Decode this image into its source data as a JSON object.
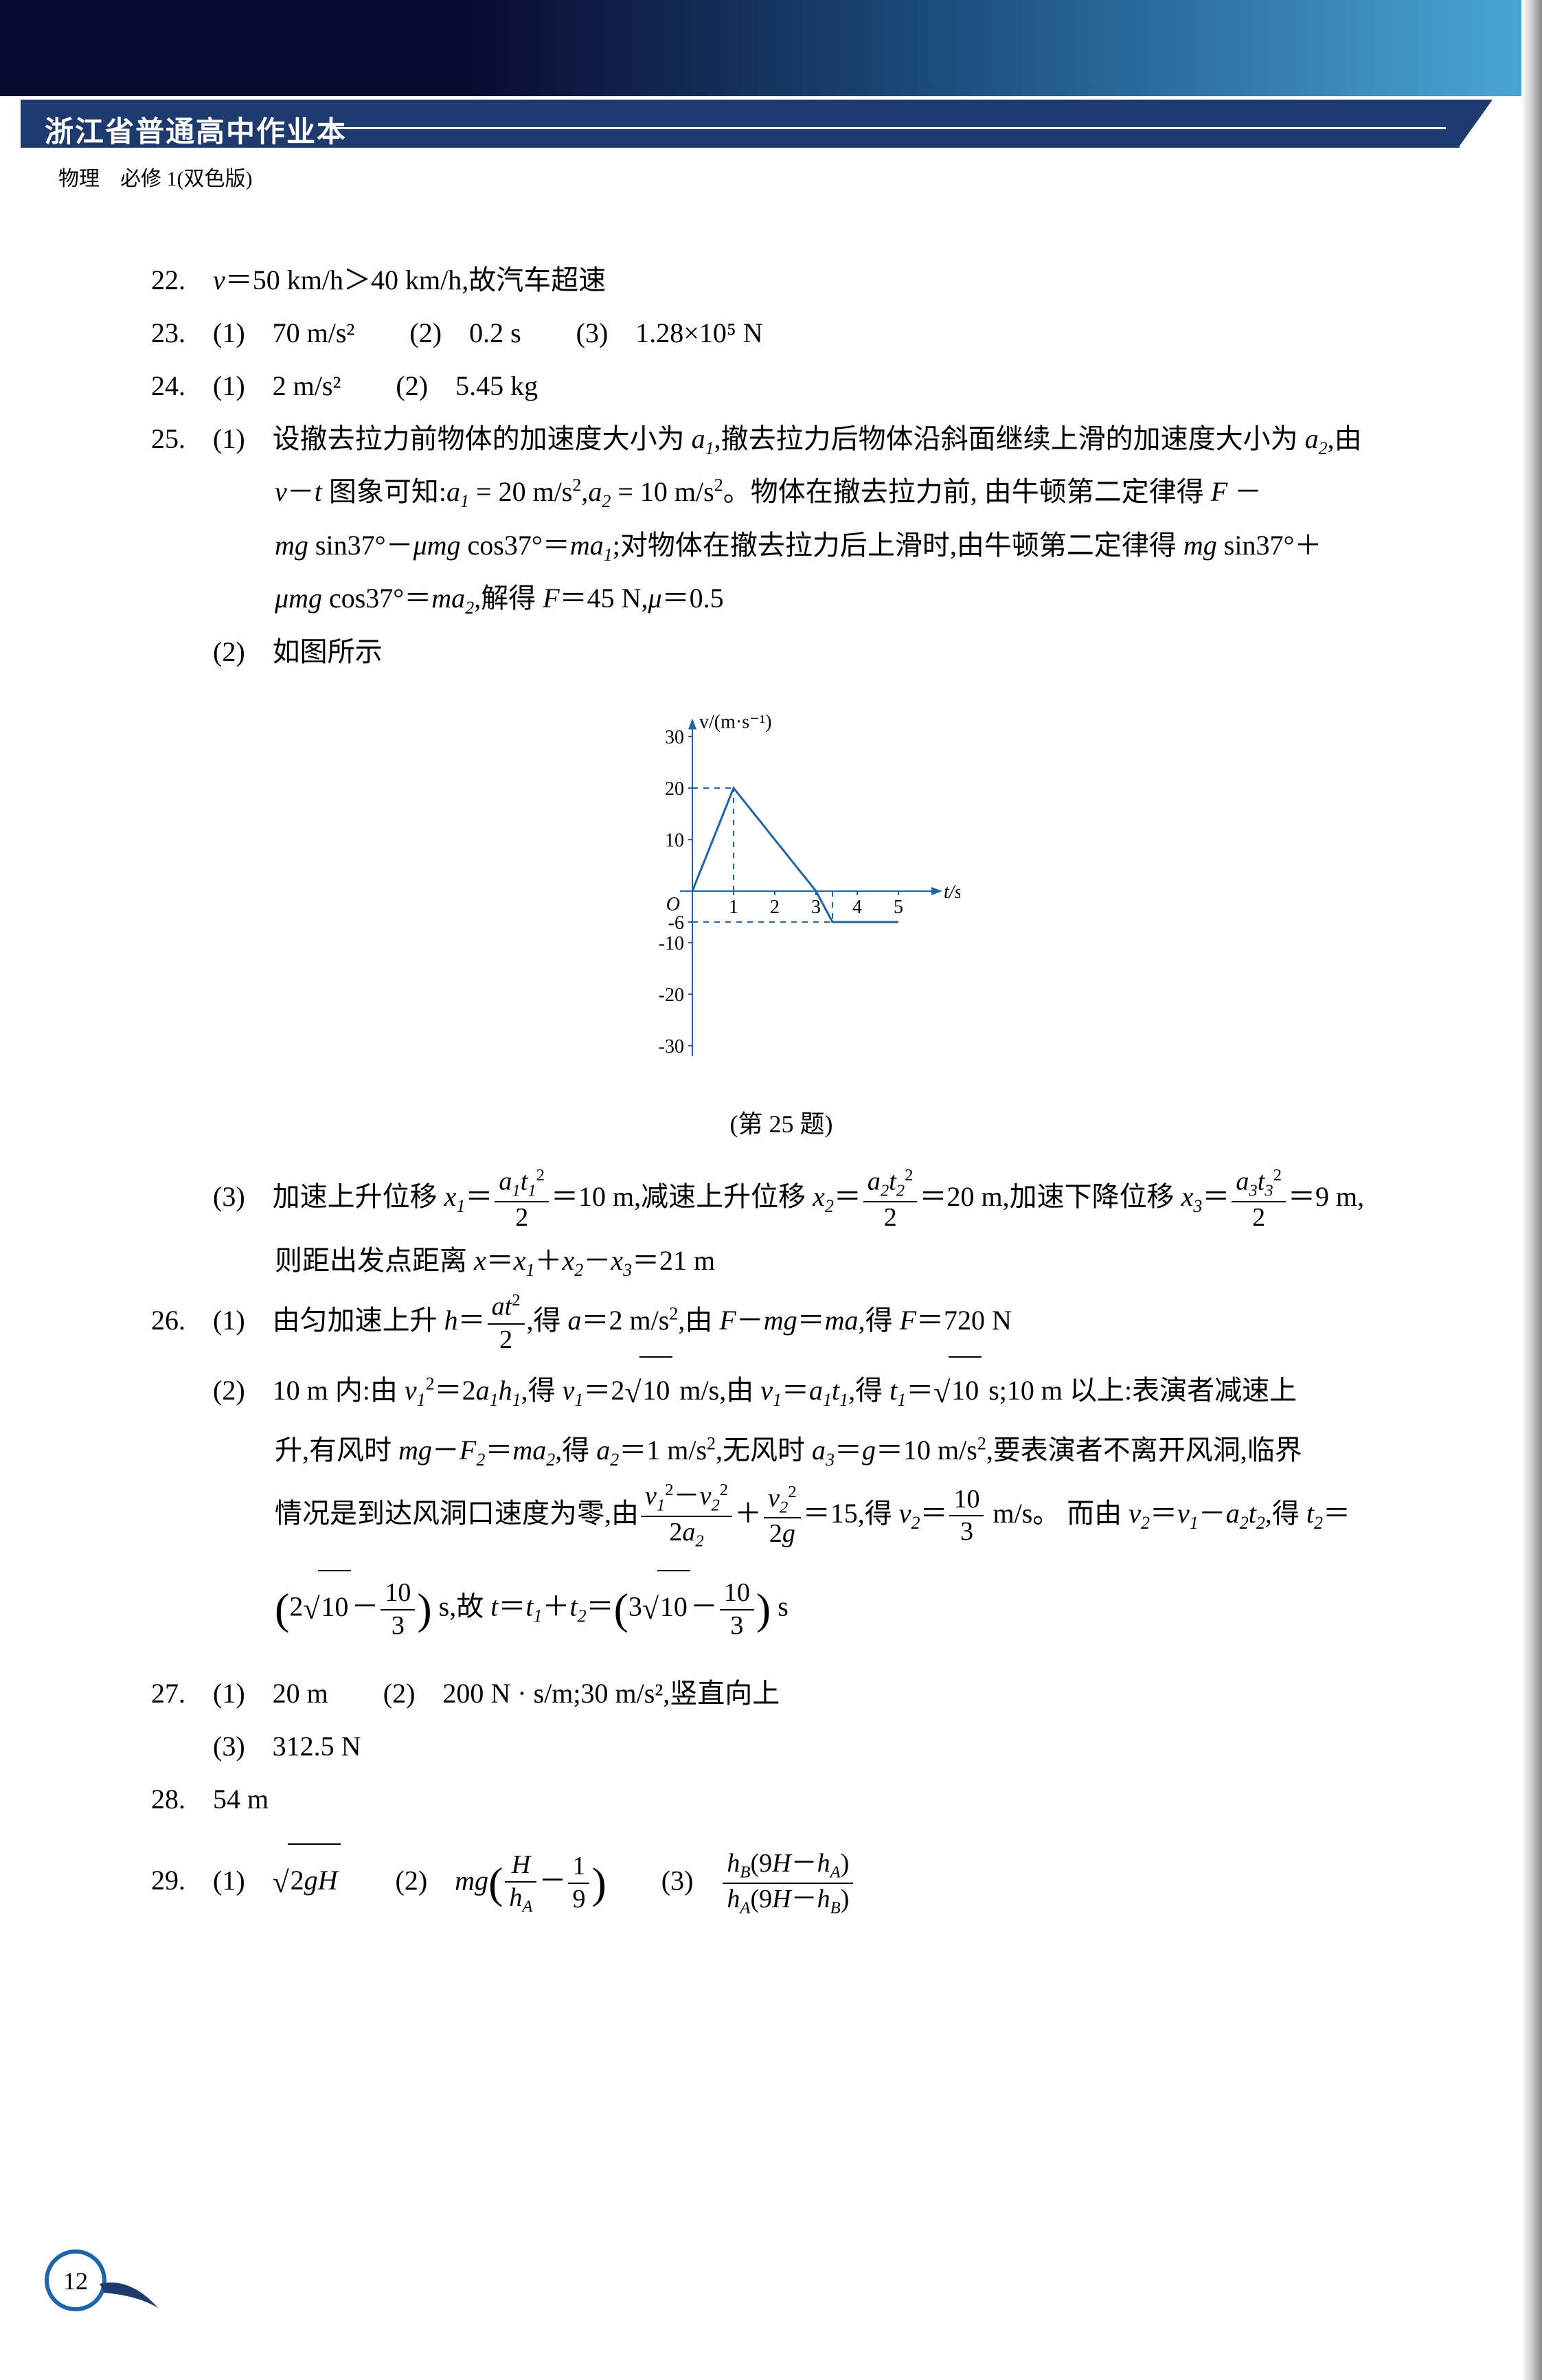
{
  "header": {
    "series_title": "浙江省普通高中作业本",
    "subtitle": "物理　必修 1(双色版)"
  },
  "page_number": "12",
  "graph25": {
    "type": "line",
    "x_label": "t/s",
    "y_label": "v/(m·s⁻¹)",
    "x_ticks": [
      1,
      2,
      3,
      4,
      5
    ],
    "y_ticks_pos": [
      10,
      20,
      30
    ],
    "y_ticks_neg": [
      -6,
      -10,
      -20,
      -30
    ],
    "points": [
      [
        0,
        0
      ],
      [
        1,
        20
      ],
      [
        3,
        0
      ],
      [
        3.4,
        -6
      ],
      [
        5,
        -6
      ]
    ],
    "line_color": "#1e64a8",
    "line_width": 3,
    "dash_segments": [
      [
        [
          0,
          20
        ],
        [
          1,
          20
        ]
      ],
      [
        [
          1,
          0
        ],
        [
          1,
          20
        ]
      ],
      [
        [
          0,
          -6
        ],
        [
          3.4,
          -6
        ]
      ],
      [
        [
          3.4,
          0
        ],
        [
          3.4,
          -6
        ]
      ]
    ],
    "dash_color": "#1e64a8",
    "axis_color": "#1e64a8",
    "ylim": [
      -30,
      30
    ],
    "xlim": [
      0,
      5.5
    ],
    "caption": "(第 25 题)"
  },
  "answers": {
    "q22": "v＝50 km/h＞40 km/h,故汽车超速",
    "q23": "(1)　70  m/s²　　(2)　0.2 s　　(3)　1.28×10⁵ N",
    "q24": "(1)　2 m/s²　　(2)　5.45 kg",
    "q25_1_a": "(1)　设撤去拉力前物体的加速度大小为 a₁,撤去拉力后物体沿斜面继续上滑的加速度大小为 a₂,由",
    "q25_1_b": "v－t 图象可知:a₁ = 20 m/s²,a₂ = 10 m/s²。物体在撤去拉力前, 由牛顿第二定律得 F －",
    "q25_1_c": "mg sin37°－μmg cos37°＝ma₁;对物体在撤去拉力后上滑时,由牛顿第二定律得 mg sin37°＋",
    "q25_1_d": "μmg cos37°＝ma₂,解得 F＝45 N,μ＝0.5",
    "q25_2": "(2)　如图所示",
    "q25_3_a_pre": "(3)　加速上升位移 ",
    "q25_3_a_mid1": "＝10 m,减速上升位移 ",
    "q25_3_a_mid2": "＝20 m,加速下降位移 ",
    "q25_3_a_end": "＝9 m,",
    "q25_3_b": "则距出发点距离 x＝x₁＋x₂－x₃＝21 m",
    "q26_1_pre": "(1)　由匀加速上升 ",
    "q26_1_mid": ",得 a＝2 m/s²,由 F－mg＝ma,得 F＝720 N",
    "q26_2_a_pre": "(2)　10 m 内:由 v₁²＝2a₁h₁,得 v₁＝2",
    "q26_2_a_sqrt1": "10",
    "q26_2_a_mid": "  m/s,由 v₁＝a₁t₁,得 t₁＝",
    "q26_2_a_sqrt2": "10",
    "q26_2_a_end": "  s;10 m 以上:表演者减速上",
    "q26_2_b": "升,有风时 mg－F₂＝ma₂,得 a₂＝1 m/s²,无风时 a₃＝g＝10 m/s²,要表演者不离开风洞,临界",
    "q26_2_c_pre": "情况是到达风洞口速度为零,由",
    "q26_2_c_mid1": "＝15,得 ",
    "q26_2_c_mid2": " m/s。 而由 v₂＝v₁－a₂t₂,得 t₂＝",
    "q26_2_d_sqrt1": "10",
    "q26_2_d_mid": " s,故 t＝t₁＋t₂＝",
    "q26_2_d_sqrt2": "10",
    "q26_2_d_end": " s",
    "q27_1": "(1)　20 m　　(2)　200 N · s/m;30 m/s²,竖直向上",
    "q27_2": "(3)　312.5 N",
    "q28": "54 m",
    "q29_pre": "(1)　",
    "q29_sqrt": "2gH",
    "q29_mid1": "　　(2)　",
    "q29_mid2": "　　(3)　"
  }
}
